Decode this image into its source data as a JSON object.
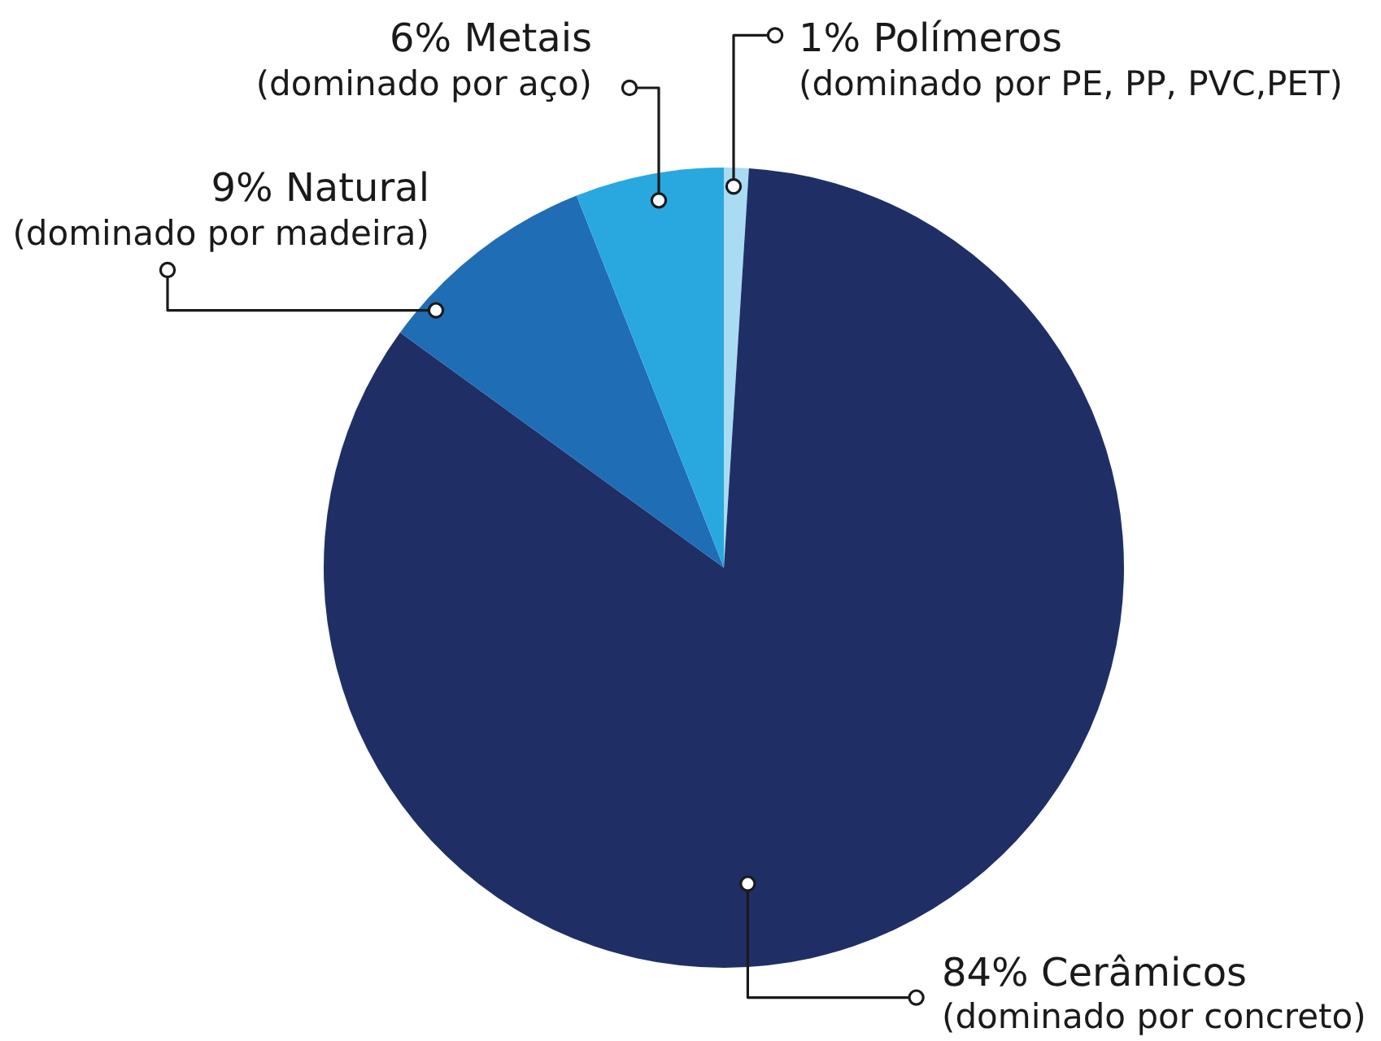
{
  "chart_data": {
    "type": "pie",
    "categories": [
      "Polímeros",
      "Cerâmicos",
      "Natural",
      "Metais"
    ],
    "values": [
      1,
      84,
      9,
      6
    ],
    "value_labels": [
      "1%",
      "84%",
      "9%",
      "6%"
    ],
    "colors": [
      "#a9dcf3",
      "#1f2f66",
      "#1f6db4",
      "#29a8e0"
    ],
    "annotations": [
      "(dominado por PE, PP, PVC,PET)",
      "(dominado por concreto)",
      "(dominado por madeira)",
      "(dominado por aço)"
    ]
  }
}
